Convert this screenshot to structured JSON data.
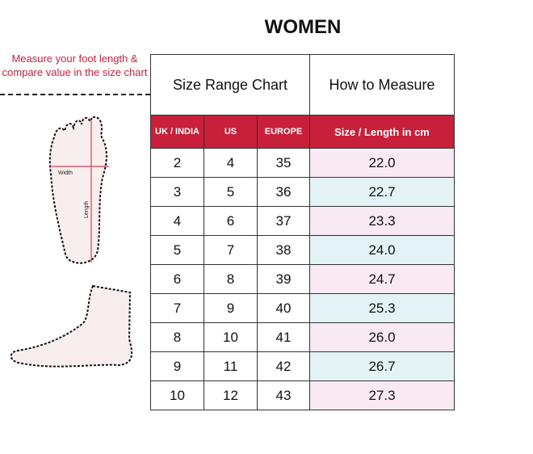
{
  "title": "WOMEN",
  "note": "Measure your foot length & compare value in the size chart",
  "diagram": {
    "width_label": "Width",
    "length_label": "Length"
  },
  "table": {
    "size_range_label": "Size Range Chart",
    "how_to_measure_label": "How to Measure",
    "columns": [
      "UK / INDIA",
      "US",
      "EUROPE",
      "Size / Length in cm"
    ],
    "row_colors": [
      "#f9e9f3",
      "#e3f3f5"
    ],
    "header_color": "#c8203a",
    "rows": [
      [
        "2",
        "4",
        "35",
        "22.0"
      ],
      [
        "3",
        "5",
        "36",
        "22.7"
      ],
      [
        "4",
        "6",
        "37",
        "23.3"
      ],
      [
        "5",
        "7",
        "38",
        "24.0"
      ],
      [
        "6",
        "8",
        "39",
        "24.7"
      ],
      [
        "7",
        "9",
        "40",
        "25.3"
      ],
      [
        "8",
        "10",
        "41",
        "26.0"
      ],
      [
        "9",
        "11",
        "42",
        "26.7"
      ],
      [
        "10",
        "12",
        "43",
        "27.3"
      ]
    ]
  }
}
